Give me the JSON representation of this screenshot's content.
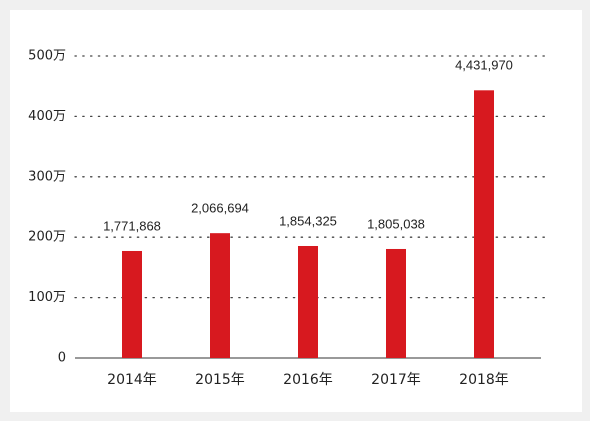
{
  "chart_data": {
    "type": "bar",
    "categories": [
      "2014年",
      "2015年",
      "2016年",
      "2017年",
      "2018年"
    ],
    "values": [
      1771868,
      2066694,
      1854325,
      1805038,
      4431970
    ],
    "value_labels": [
      "1,771,868",
      "2,066,694",
      "1,854,325",
      "1,805,038",
      "4,431,970"
    ],
    "color": "#d7191f",
    "ylim": [
      0,
      5000000
    ],
    "yticks": [
      0,
      {
        "value": 1000000,
        "label": "100万"
      },
      {
        "value": 2000000,
        "label": "200万"
      },
      {
        "value": 3000000,
        "label": "300万"
      },
      {
        "value": 4000000,
        "label": "400万"
      },
      {
        "value": 5000000,
        "label": "500万"
      }
    ],
    "grid": true
  }
}
